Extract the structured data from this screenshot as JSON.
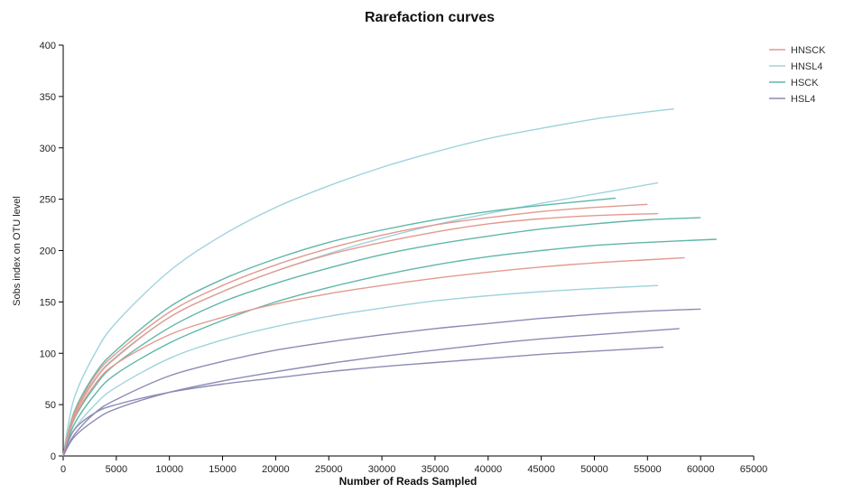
{
  "chart_data": {
    "type": "line",
    "title": "Rarefaction curves",
    "xlabel": "Number of Reads Sampled",
    "ylabel": "Sobs index on OTU level",
    "xlim": [
      0,
      65000
    ],
    "ylim": [
      0,
      400
    ],
    "xticks": [
      0,
      5000,
      10000,
      15000,
      20000,
      25000,
      30000,
      35000,
      40000,
      45000,
      50000,
      55000,
      60000,
      65000
    ],
    "yticks": [
      0,
      50,
      100,
      150,
      200,
      250,
      300,
      350,
      400
    ],
    "grid": false,
    "legend_position": "top-right",
    "legend": [
      {
        "name": "HNSCK",
        "color": "#e39a8f"
      },
      {
        "name": "HNSL4",
        "color": "#9fd3dd"
      },
      {
        "name": "HSCK",
        "color": "#5fb7a8"
      },
      {
        "name": "HSL4",
        "color": "#8c8bb4"
      }
    ],
    "series": [
      {
        "group": "HNSL4",
        "color": "#9fd3dd",
        "x": [
          0,
          1000,
          3000,
          5000,
          10000,
          15000,
          20000,
          25000,
          30000,
          35000,
          40000,
          45000,
          50000,
          55000,
          57500
        ],
        "y": [
          0,
          55,
          100,
          130,
          180,
          215,
          242,
          263,
          281,
          296,
          309,
          319,
          328,
          335,
          338
        ]
      },
      {
        "group": "HNSL4",
        "color": "#9fd3dd",
        "x": [
          0,
          1000,
          3000,
          5000,
          10000,
          15000,
          20000,
          25000,
          30000,
          35000,
          40000,
          45000,
          50000,
          56000
        ],
        "y": [
          0,
          40,
          75,
          97,
          135,
          160,
          180,
          197,
          212,
          225,
          236,
          246,
          255,
          266
        ]
      },
      {
        "group": "HNSL4",
        "color": "#9fd3dd",
        "x": [
          0,
          1000,
          3000,
          5000,
          10000,
          15000,
          20000,
          25000,
          30000,
          35000,
          40000,
          45000,
          50000,
          56000
        ],
        "y": [
          0,
          25,
          50,
          67,
          95,
          113,
          126,
          136,
          144,
          151,
          156,
          160,
          163,
          166
        ]
      },
      {
        "group": "HSCK",
        "color": "#5fb7a8",
        "x": [
          0,
          1000,
          3000,
          5000,
          10000,
          15000,
          20000,
          25000,
          30000,
          35000,
          40000,
          45000,
          52000
        ],
        "y": [
          0,
          42,
          80,
          103,
          145,
          172,
          192,
          208,
          220,
          230,
          238,
          244,
          251
        ]
      },
      {
        "group": "HSCK",
        "color": "#5fb7a8",
        "x": [
          0,
          1000,
          3000,
          5000,
          10000,
          15000,
          20000,
          25000,
          30000,
          35000,
          40000,
          45000,
          50000,
          55000,
          60000
        ],
        "y": [
          0,
          35,
          68,
          90,
          125,
          150,
          168,
          183,
          196,
          206,
          214,
          221,
          226,
          230,
          232
        ]
      },
      {
        "group": "HSCK",
        "color": "#5fb7a8",
        "x": [
          0,
          1000,
          3000,
          5000,
          10000,
          15000,
          20000,
          25000,
          30000,
          35000,
          40000,
          45000,
          50000,
          55000,
          61500
        ],
        "y": [
          0,
          30,
          60,
          80,
          110,
          132,
          150,
          164,
          176,
          186,
          194,
          200,
          205,
          208,
          211
        ]
      },
      {
        "group": "HNSCK",
        "color": "#e39a8f",
        "x": [
          0,
          1000,
          3000,
          5000,
          10000,
          15000,
          20000,
          25000,
          30000,
          35000,
          40000,
          45000,
          50000,
          55000
        ],
        "y": [
          0,
          40,
          78,
          100,
          140,
          166,
          186,
          202,
          215,
          225,
          232,
          238,
          242,
          245
        ]
      },
      {
        "group": "HNSCK",
        "color": "#e39a8f",
        "x": [
          0,
          1000,
          3000,
          5000,
          10000,
          15000,
          20000,
          25000,
          30000,
          35000,
          40000,
          45000,
          50000,
          56000
        ],
        "y": [
          0,
          38,
          74,
          96,
          135,
          160,
          180,
          196,
          208,
          218,
          226,
          231,
          234,
          236
        ]
      },
      {
        "group": "HNSCK",
        "color": "#e39a8f",
        "x": [
          0,
          1000,
          3000,
          5000,
          10000,
          15000,
          20000,
          25000,
          30000,
          35000,
          40000,
          45000,
          50000,
          55000,
          58500
        ],
        "y": [
          0,
          36,
          70,
          90,
          118,
          135,
          148,
          158,
          166,
          173,
          179,
          184,
          188,
          191,
          193
        ]
      },
      {
        "group": "HSL4",
        "color": "#8c8bb4",
        "x": [
          0,
          1000,
          3000,
          5000,
          10000,
          15000,
          20000,
          25000,
          30000,
          35000,
          40000,
          45000,
          50000,
          55000,
          60000
        ],
        "y": [
          0,
          20,
          42,
          55,
          78,
          92,
          103,
          111,
          118,
          124,
          129,
          134,
          138,
          141,
          143
        ]
      },
      {
        "group": "HSL4",
        "color": "#8c8bb4",
        "x": [
          0,
          1000,
          3000,
          5000,
          10000,
          15000,
          20000,
          25000,
          30000,
          35000,
          40000,
          45000,
          50000,
          58000
        ],
        "y": [
          0,
          18,
          35,
          46,
          62,
          73,
          82,
          90,
          97,
          103,
          109,
          114,
          118,
          124
        ]
      },
      {
        "group": "HSL4",
        "color": "#8c8bb4",
        "x": [
          0,
          1000,
          3000,
          5000,
          10000,
          15000,
          20000,
          25000,
          30000,
          35000,
          40000,
          45000,
          50000,
          56500
        ],
        "y": [
          0,
          25,
          42,
          50,
          62,
          70,
          76,
          82,
          87,
          91,
          95,
          99,
          102,
          106
        ]
      }
    ]
  }
}
